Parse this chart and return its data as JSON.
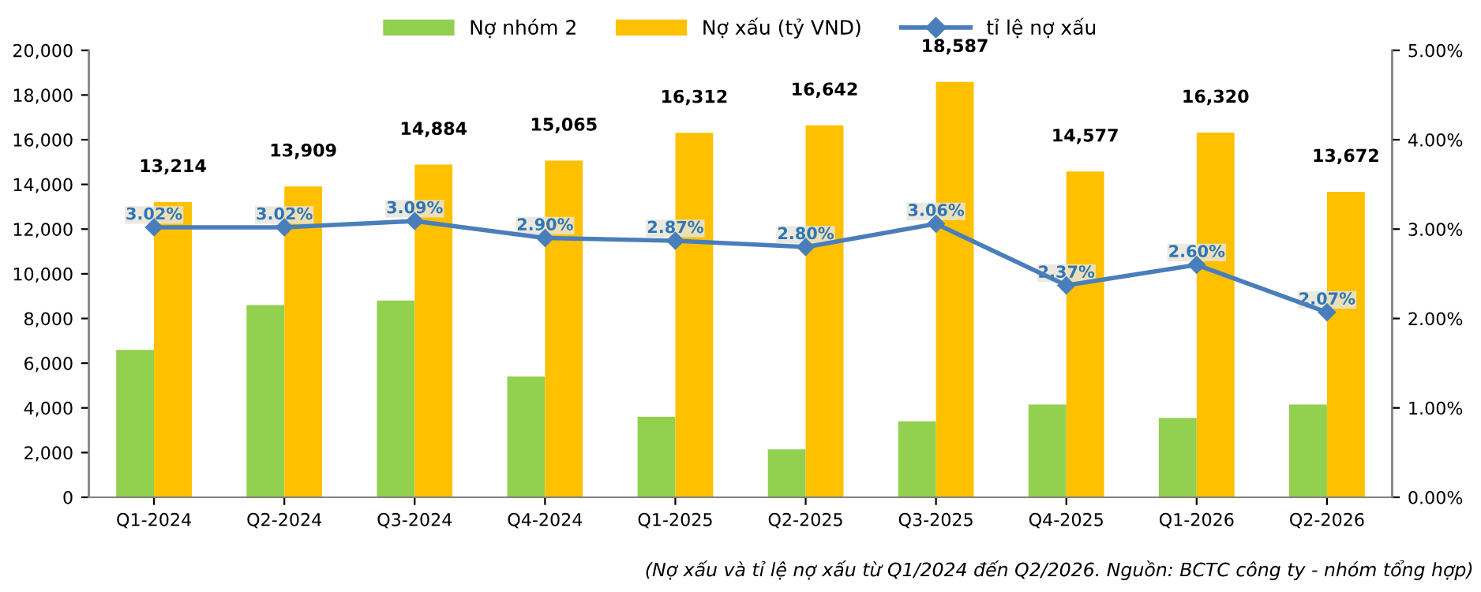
{
  "chart_data": {
    "type": "bar",
    "categories": [
      "Q1-2024",
      "Q2-2024",
      "Q3-2024",
      "Q4-2024",
      "Q1-2025",
      "Q2-2025",
      "Q3-2025",
      "Q4-2025",
      "Q1-2026",
      "Q2-2026"
    ],
    "series": [
      {
        "name": "Nợ nhóm 2",
        "color": "#92d050",
        "values": [
          6600,
          8600,
          8800,
          5400,
          3600,
          2150,
          3400,
          4150,
          3550,
          4150
        ]
      },
      {
        "name": "Nợ xấu (tỷ VND)",
        "color": "#ffc000",
        "values": [
          13214,
          13909,
          14884,
          15065,
          16312,
          16642,
          18587,
          14577,
          16320,
          13672
        ],
        "value_labels": [
          "13,214",
          "13,909",
          "14,884",
          "15,065",
          "16,312",
          "16,642",
          "18,587",
          "14,577",
          "16,320",
          "13,672"
        ]
      },
      {
        "name": "tỉ lệ nợ xấu",
        "type": "line",
        "axis": "y2",
        "color": "#4a7ebb",
        "marker": "diamond",
        "values": [
          3.02,
          3.02,
          3.09,
          2.9,
          2.87,
          2.8,
          3.06,
          2.37,
          2.6,
          2.07
        ],
        "value_labels": [
          "3.02%",
          "3.02%",
          "3.09%",
          "2.90%",
          "2.87%",
          "2.80%",
          "3.06%",
          "2.37%",
          "2.60%",
          "2.07%"
        ]
      }
    ],
    "ylim": [
      0,
      20000
    ],
    "yticks": [
      {
        "value": 0,
        "label": "0"
      },
      {
        "value": 2000,
        "label": "2,000"
      },
      {
        "value": 4000,
        "label": "4,000"
      },
      {
        "value": 6000,
        "label": "6,000"
      },
      {
        "value": 8000,
        "label": "8,000"
      },
      {
        "value": 10000,
        "label": "10,000"
      },
      {
        "value": 12000,
        "label": "12,000"
      },
      {
        "value": 14000,
        "label": "14,000"
      },
      {
        "value": 16000,
        "label": "16,000"
      },
      {
        "value": 18000,
        "label": "18,000"
      },
      {
        "value": 20000,
        "label": "20,000"
      }
    ],
    "y2lim": [
      0,
      5
    ],
    "y2ticks": [
      {
        "value": 0,
        "label": "0.00%"
      },
      {
        "value": 1,
        "label": "1.00%"
      },
      {
        "value": 2,
        "label": "2.00%"
      },
      {
        "value": 3,
        "label": "3.00%"
      },
      {
        "value": 4,
        "label": "4.00%"
      },
      {
        "value": 5,
        "label": "5.00%"
      }
    ],
    "grid": false,
    "legend": "top",
    "annotations": [
      "(Nợ xấu và tỉ lệ nợ xấu từ Q1/2024 đến Q2/2026. Nguồn: BCTC công ty - nhóm tổng hợp)"
    ]
  }
}
